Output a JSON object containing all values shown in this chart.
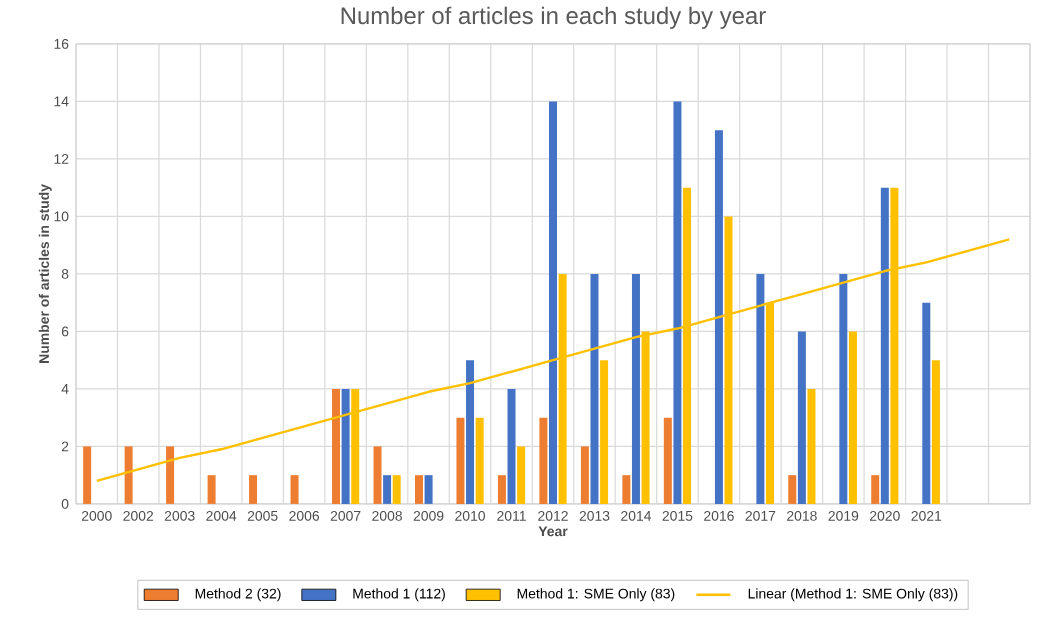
{
  "chart_data": {
    "type": "bar",
    "title": "Number of articles in each study by year",
    "xlabel": "Year",
    "ylabel": "Number of articles in study",
    "categories": [
      "2000",
      "2002",
      "2003",
      "2004",
      "2005",
      "2006",
      "2007",
      "2008",
      "2009",
      "2010",
      "2011",
      "2012",
      "2013",
      "2014",
      "2015",
      "2016",
      "2017",
      "2018",
      "2019",
      "2020",
      "2021",
      null,
      null
    ],
    "series": [
      {
        "name": "Method 2 (32)",
        "color": "#ed7d31",
        "values": [
          2,
          2,
          2,
          1,
          1,
          1,
          4,
          2,
          1,
          3,
          1,
          3,
          2,
          1,
          3,
          null,
          null,
          1,
          null,
          1,
          null,
          null,
          null
        ]
      },
      {
        "name": "Method 1 (112)",
        "color": "#4472c4",
        "values": [
          null,
          null,
          null,
          null,
          null,
          null,
          4,
          1,
          1,
          5,
          4,
          14,
          8,
          8,
          14,
          13,
          8,
          6,
          8,
          11,
          7,
          null,
          null
        ]
      },
      {
        "name": "Method 1: SME Only (83)",
        "color": "#ffc000",
        "values": [
          null,
          null,
          null,
          null,
          null,
          null,
          4,
          1,
          null,
          3,
          2,
          8,
          5,
          6,
          11,
          10,
          7,
          4,
          6,
          11,
          5,
          null,
          null
        ]
      },
      {
        "name": "Linear (Method 1: SME Only (83))",
        "color": "#ffc000",
        "type": "line",
        "values": [
          0.8,
          1.2,
          1.6,
          1.9,
          2.3,
          2.7,
          3.1,
          3.5,
          3.9,
          4.2,
          4.6,
          5.0,
          5.4,
          5.8,
          6.1,
          6.5,
          6.9,
          7.3,
          7.7,
          8.1,
          8.4,
          8.8,
          9.2
        ]
      }
    ],
    "ylim": [
      0,
      16
    ],
    "yticks": [
      0,
      2,
      4,
      6,
      8,
      10,
      12,
      14,
      16
    ],
    "grid": true,
    "legend": "bottom"
  }
}
